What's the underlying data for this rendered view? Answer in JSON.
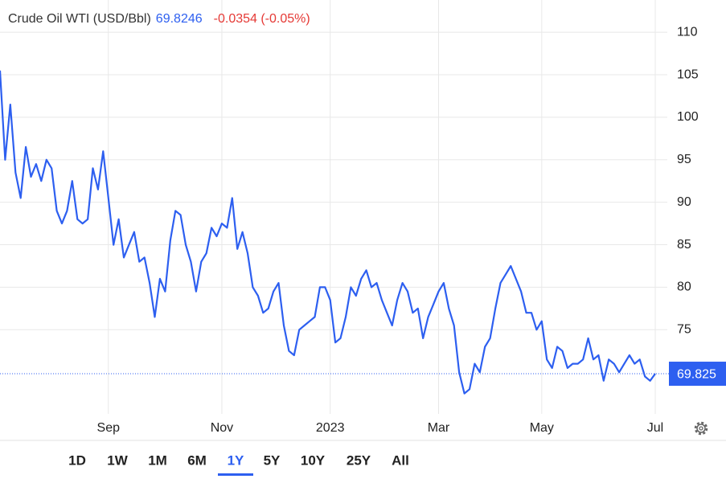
{
  "chart_data": {
    "type": "line",
    "title": "Crude Oil WTI (USD/Bbl)",
    "change": "-0.0354 (-0.05%)",
    "last_label": "69.825",
    "color": "#2d5ff0",
    "categories": [
      null,
      null,
      null,
      null,
      null,
      null,
      null,
      null,
      null,
      null,
      null,
      null,
      null,
      null,
      null,
      null,
      null,
      null,
      null,
      null,
      null,
      "Sep",
      null,
      null,
      null,
      null,
      null,
      null,
      null,
      null,
      null,
      null,
      null,
      null,
      null,
      null,
      null,
      null,
      null,
      null,
      null,
      null,
      null,
      "Nov",
      null,
      null,
      null,
      null,
      null,
      null,
      null,
      null,
      null,
      null,
      null,
      null,
      null,
      null,
      null,
      null,
      null,
      null,
      null,
      null,
      "2023",
      null,
      null,
      null,
      null,
      null,
      null,
      null,
      null,
      null,
      null,
      null,
      null,
      null,
      null,
      null,
      null,
      null,
      null,
      null,
      null,
      "Mar",
      null,
      null,
      null,
      null,
      null,
      null,
      null,
      null,
      null,
      null,
      null,
      null,
      null,
      null,
      null,
      null,
      null,
      null,
      null,
      "May",
      null,
      null,
      null,
      null,
      null,
      null,
      null,
      null,
      null,
      null,
      null,
      null,
      null,
      null,
      null,
      null,
      null,
      null,
      null,
      null,
      null,
      "Jul"
    ],
    "values": [
      105.5,
      95,
      101.5,
      93.5,
      90.5,
      96.5,
      93,
      94.5,
      92.5,
      95,
      94,
      89,
      87.5,
      89,
      92.5,
      88,
      87.5,
      88,
      94,
      91.5,
      96,
      90.5,
      85,
      88,
      83.5,
      85,
      86.5,
      83,
      83.5,
      80.5,
      76.5,
      81,
      79.5,
      85.5,
      89,
      88.5,
      85,
      83,
      79.5,
      83,
      84,
      87,
      86,
      87.5,
      87,
      90.5,
      84.5,
      86.5,
      84,
      80,
      79,
      77,
      77.5,
      79.5,
      80.5,
      75.5,
      72.5,
      72,
      75,
      75.5,
      76,
      76.5,
      80,
      80,
      78.5,
      73.5,
      74,
      76.5,
      80,
      79,
      81,
      82,
      80,
      80.5,
      78.5,
      77,
      75.5,
      78.5,
      80.5,
      79.5,
      77,
      77.5,
      74,
      76.5,
      78,
      79.5,
      80.5,
      77.5,
      75.5,
      70,
      67.5,
      68,
      71,
      70,
      73,
      74,
      77.5,
      80.5,
      81.5,
      82.5,
      81,
      79.5,
      77,
      77,
      75,
      76,
      71.5,
      70.5,
      73,
      72.5,
      70.5,
      71,
      71,
      71.5,
      74,
      71.5,
      72,
      69,
      71.5,
      71,
      70,
      71,
      72,
      71,
      71.5,
      69.5,
      69,
      69.8246
    ],
    "ylim": [
      65.1,
      113.8
    ],
    "yticks": [
      75,
      80,
      85,
      90,
      95,
      100,
      105,
      110
    ],
    "grid": true,
    "ranges": [
      "1D",
      "1W",
      "1M",
      "6M",
      "1Y",
      "5Y",
      "10Y",
      "25Y",
      "All"
    ],
    "selected_range": 4
  }
}
